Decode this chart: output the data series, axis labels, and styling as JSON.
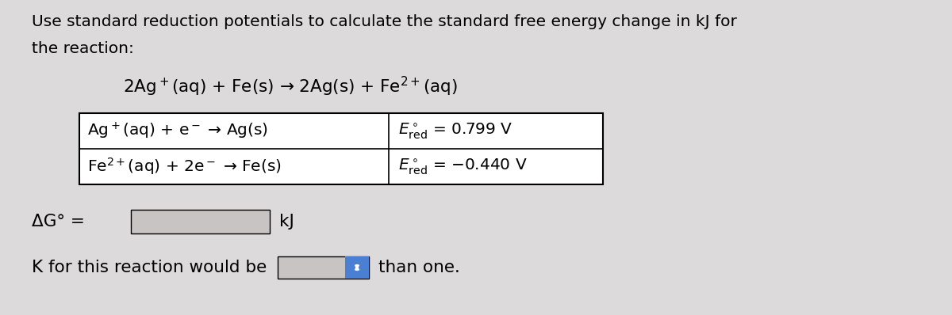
{
  "background_color": "#dcdada",
  "title_line1": "Use standard reduction potentials to calculate the standard free energy change in kJ for",
  "title_line2": "the reaction:",
  "main_reaction": "2Ag$^+$(aq) + Fe(s) → 2Ag(s) + Fe$^{2+}$(aq)",
  "row1_reaction": "Ag$^+$(aq) + e$^-$ → Ag(s)",
  "row1_value": "$E^\\circ_{\\mathrm{red}}$ = 0.799 V",
  "row2_reaction": "Fe$^{2+}$(aq) + 2e$^-$ → Fe(s)",
  "row2_value": "$E^\\circ_{\\mathrm{red}}$ = −0.440 V",
  "delta_g_label": "ΔG° =",
  "delta_g_unit": "kJ",
  "k_line": "K for this reaction would be",
  "k_suffix": "than one.",
  "input_box_color": "#c8c4c4",
  "table_bg_color": "#ffffff",
  "table_border_color": "#000000",
  "text_color": "#000000",
  "dropdown_color": "#4a7fd4",
  "font_size_title": 14.5,
  "font_size_reaction": 15.5,
  "font_size_table": 14.5,
  "font_size_bottom": 14.5
}
